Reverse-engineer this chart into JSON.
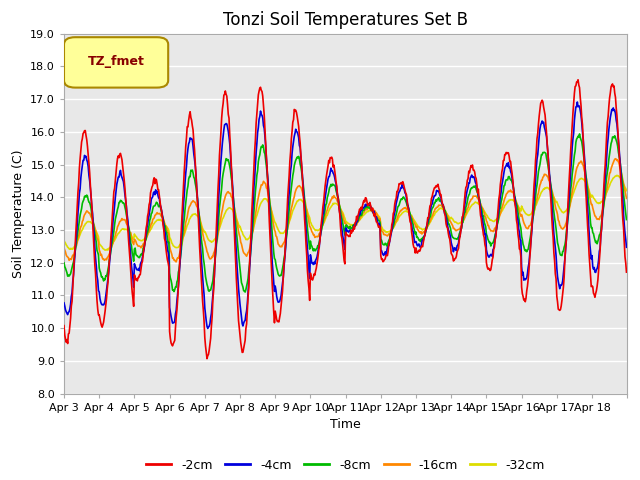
{
  "title": "Tonzi Soil Temperatures Set B",
  "xlabel": "Time",
  "ylabel": "Soil Temperature (C)",
  "ylim": [
    8.0,
    19.0
  ],
  "yticks": [
    8.0,
    9.0,
    10.0,
    11.0,
    12.0,
    13.0,
    14.0,
    15.0,
    16.0,
    17.0,
    18.0,
    19.0
  ],
  "xtick_labels": [
    "Apr 3",
    "Apr 4",
    "Apr 5",
    "Apr 6",
    "Apr 7",
    "Apr 8",
    "Apr 9",
    "Apr 10",
    "Apr 11",
    "Apr 12",
    "Apr 13",
    "Apr 14",
    "Apr 15",
    "Apr 16",
    "Apr 17",
    "Apr 18"
  ],
  "series_labels": [
    "-2cm",
    "-4cm",
    "-8cm",
    "-16cm",
    "-32cm"
  ],
  "series_colors": [
    "#ee0000",
    "#0000dd",
    "#00bb00",
    "#ff8800",
    "#dddd00"
  ],
  "legend_label": "TZ_fmet",
  "legend_bg": "#ffff99",
  "legend_border": "#aa8800",
  "fig_bg": "#ffffff",
  "plot_bg": "#e8e8e8",
  "grid_color": "#ffffff",
  "title_fontsize": 12,
  "axis_fontsize": 9,
  "tick_fontsize": 8,
  "n_days": 16,
  "points_per_day": 48,
  "start_day": 3
}
